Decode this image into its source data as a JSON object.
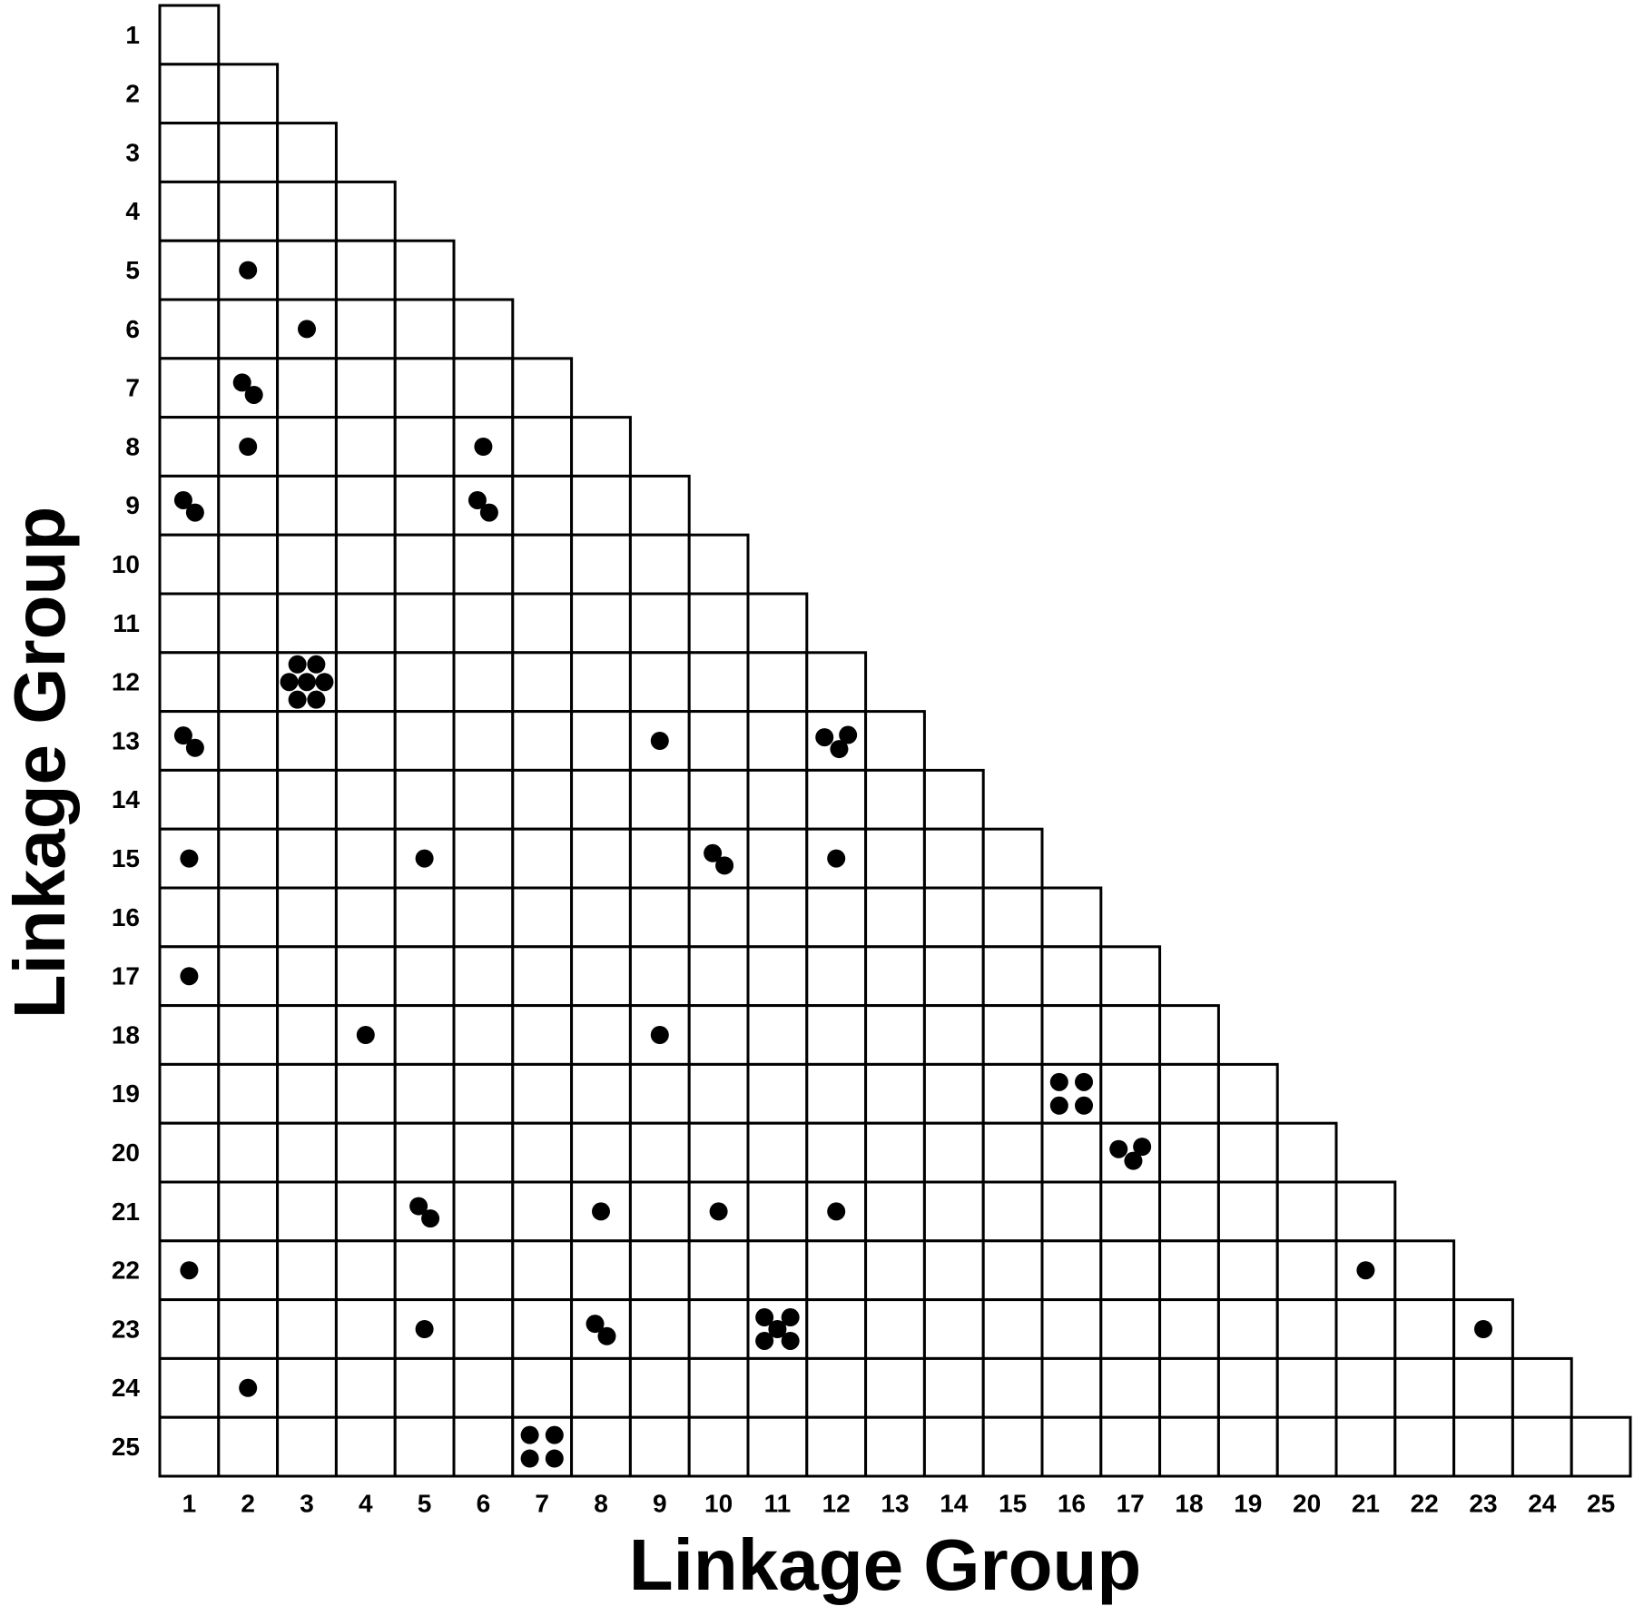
{
  "chart_data": {
    "type": "dot_matrix",
    "x_label": "Linkage Group",
    "y_label": "Linkage Group",
    "x_categories": [
      "1",
      "2",
      "3",
      "4",
      "5",
      "6",
      "7",
      "8",
      "9",
      "10",
      "11",
      "12",
      "13",
      "14",
      "15",
      "16",
      "17",
      "18",
      "19",
      "20",
      "21",
      "22",
      "23",
      "24",
      "25"
    ],
    "y_categories": [
      "1",
      "2",
      "3",
      "4",
      "5",
      "6",
      "7",
      "8",
      "9",
      "10",
      "11",
      "12",
      "13",
      "14",
      "15",
      "16",
      "17",
      "18",
      "19",
      "20",
      "21",
      "22",
      "23",
      "24",
      "25"
    ],
    "color": "#000000",
    "counts": [
      [
        0
      ],
      [
        0,
        0
      ],
      [
        0,
        0,
        0
      ],
      [
        0,
        0,
        0,
        0
      ],
      [
        0,
        1,
        0,
        0,
        0
      ],
      [
        0,
        0,
        1,
        0,
        0,
        0
      ],
      [
        0,
        2,
        0,
        0,
        0,
        0,
        0
      ],
      [
        0,
        1,
        0,
        0,
        0,
        1,
        0,
        0
      ],
      [
        2,
        0,
        0,
        0,
        0,
        2,
        0,
        0,
        0
      ],
      [
        0,
        0,
        0,
        0,
        0,
        0,
        0,
        0,
        0,
        0
      ],
      [
        0,
        0,
        0,
        0,
        0,
        0,
        0,
        0,
        0,
        0,
        0
      ],
      [
        0,
        0,
        7,
        0,
        0,
        0,
        0,
        0,
        0,
        0,
        0,
        0
      ],
      [
        2,
        0,
        0,
        0,
        0,
        0,
        0,
        0,
        1,
        0,
        0,
        3,
        0
      ],
      [
        0,
        0,
        0,
        0,
        0,
        0,
        0,
        0,
        0,
        0,
        0,
        0,
        0,
        0
      ],
      [
        1,
        0,
        0,
        0,
        1,
        0,
        0,
        0,
        0,
        2,
        0,
        1,
        0,
        0,
        0
      ],
      [
        0,
        0,
        0,
        0,
        0,
        0,
        0,
        0,
        0,
        0,
        0,
        0,
        0,
        0,
        0,
        0
      ],
      [
        1,
        0,
        0,
        0,
        0,
        0,
        0,
        0,
        0,
        0,
        0,
        0,
        0,
        0,
        0,
        0,
        0
      ],
      [
        0,
        0,
        0,
        1,
        0,
        0,
        0,
        0,
        1,
        0,
        0,
        0,
        0,
        0,
        0,
        0,
        0,
        0
      ],
      [
        0,
        0,
        0,
        0,
        0,
        0,
        0,
        0,
        0,
        0,
        0,
        0,
        0,
        0,
        0,
        4,
        0,
        0,
        0
      ],
      [
        0,
        0,
        0,
        0,
        0,
        0,
        0,
        0,
        0,
        0,
        0,
        0,
        0,
        0,
        0,
        0,
        3,
        0,
        0,
        0
      ],
      [
        0,
        0,
        0,
        0,
        2,
        0,
        0,
        1,
        0,
        1,
        0,
        1,
        0,
        0,
        0,
        0,
        0,
        0,
        0,
        0,
        0
      ],
      [
        1,
        0,
        0,
        0,
        0,
        0,
        0,
        0,
        0,
        0,
        0,
        0,
        0,
        0,
        0,
        0,
        0,
        0,
        0,
        0,
        1,
        0
      ],
      [
        0,
        0,
        0,
        0,
        1,
        0,
        0,
        2,
        0,
        0,
        5,
        0,
        0,
        0,
        0,
        0,
        0,
        0,
        0,
        0,
        0,
        0,
        1
      ],
      [
        0,
        1,
        0,
        0,
        0,
        0,
        0,
        0,
        0,
        0,
        0,
        0,
        0,
        0,
        0,
        0,
        0,
        0,
        0,
        0,
        0,
        0,
        0,
        0
      ],
      [
        0,
        0,
        0,
        0,
        0,
        0,
        4,
        0,
        0,
        0,
        0,
        0,
        0,
        0,
        0,
        0,
        0,
        0,
        0,
        0,
        0,
        0,
        0,
        0,
        0
      ]
    ]
  }
}
